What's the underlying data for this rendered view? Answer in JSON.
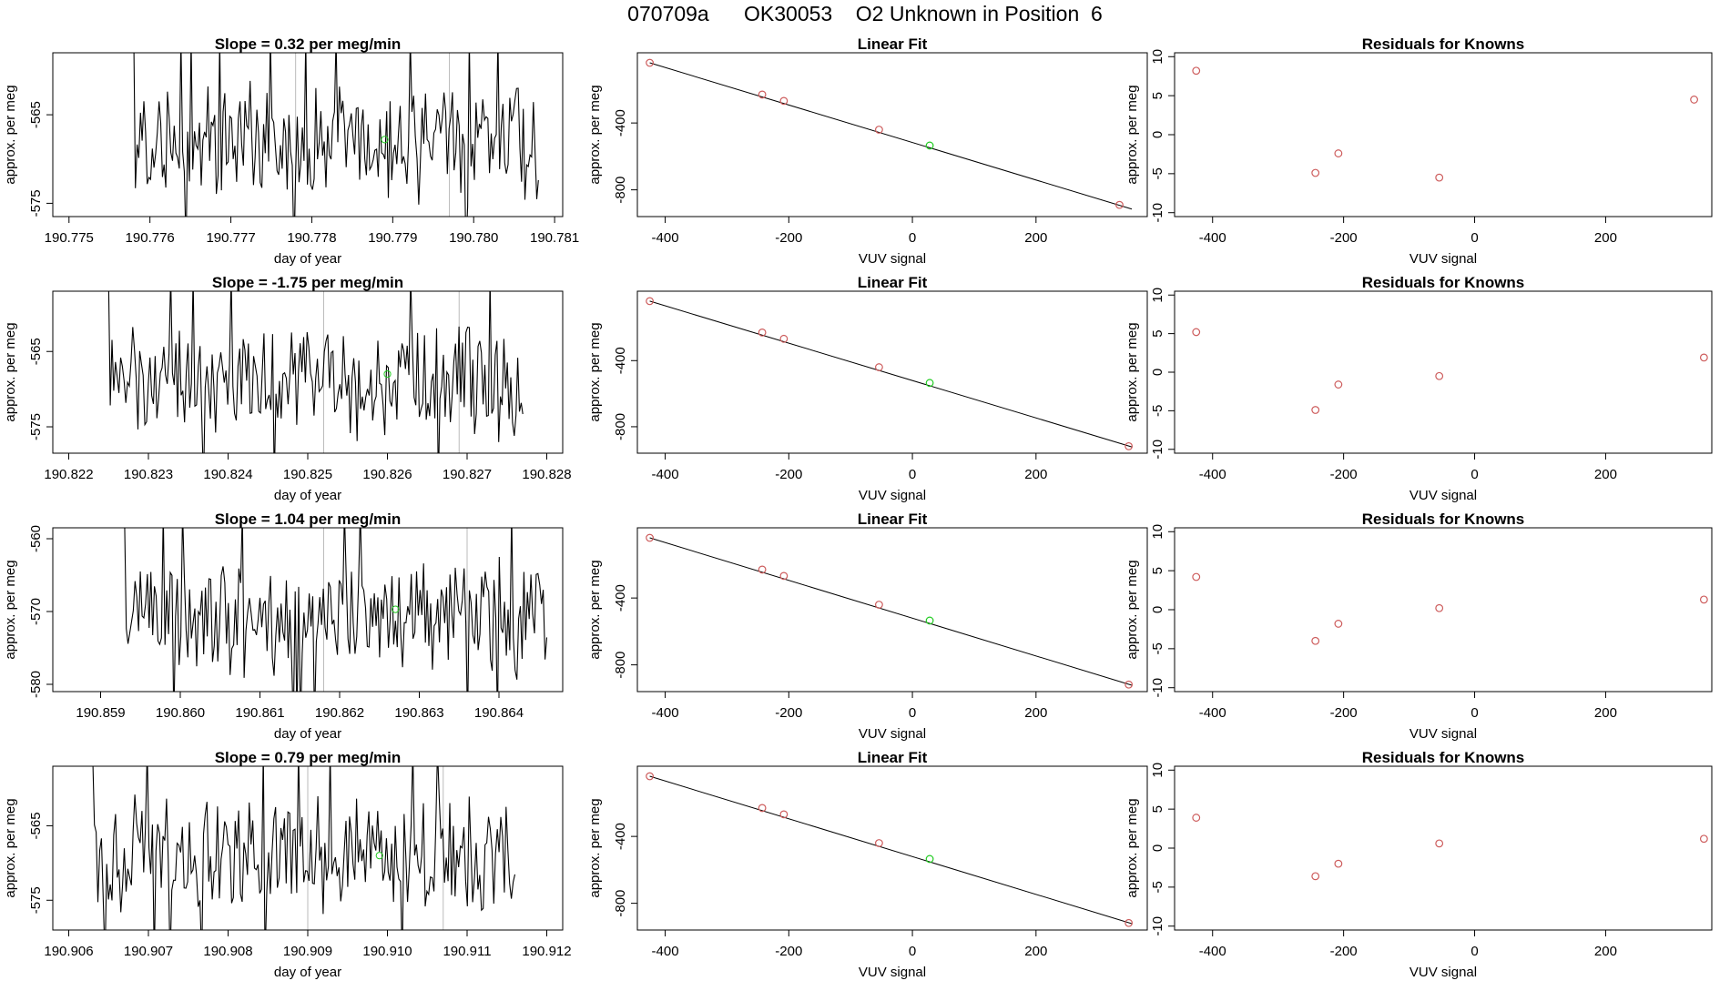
{
  "page_title": "070709a      OK30053    O2 Unknown in Position  6",
  "colors": {
    "line": "#000000",
    "known_point": "#cd5c5c",
    "unknown_point": "#22cc22",
    "marker_line": "#bbbbbb"
  },
  "chart_data": [
    {
      "type": "line",
      "row": 1,
      "title": "Slope =  0.32  per meg/min",
      "xlabel": "day of year",
      "ylabel": "approx. per meg",
      "xlim": [
        190.7748,
        190.7811
      ],
      "ylim": [
        -576.5,
        -558.0
      ],
      "xticks": [
        "190.775",
        "190.776",
        "190.777",
        "190.778",
        "190.779",
        "190.780",
        "190.781"
      ],
      "xtick_values": [
        190.775,
        190.776,
        190.777,
        190.778,
        190.779,
        190.78,
        190.781
      ],
      "yticks": [
        "-565",
        "-575"
      ],
      "ytick_values": [
        -565,
        -575
      ],
      "trace_start": 190.7758,
      "trace_end": 190.7808,
      "vertical_markers": [
        190.7778,
        190.7797
      ],
      "unknown_point": [
        190.7789,
        -567.8
      ]
    },
    {
      "type": "scatter",
      "row": 1,
      "title": "Linear Fit",
      "xlabel": "VUV signal",
      "ylabel": "approx. per meg",
      "xlim": [
        -445,
        380
      ],
      "ylim": [
        -960,
        20
      ],
      "xticks": [
        "-400",
        "-200",
        "0",
        "200"
      ],
      "xtick_values": [
        -400,
        -200,
        0,
        200
      ],
      "yticks": [
        "-400",
        "-800"
      ],
      "ytick_values": [
        -400,
        -800
      ],
      "fit_line": {
        "x": [
          -425,
          355
        ],
        "y": [
          -40,
          -915
        ]
      },
      "knowns": {
        "x": [
          -425,
          -243,
          -208,
          -54,
          335
        ],
        "y": [
          -40,
          -230,
          -268,
          -440,
          -890
        ]
      },
      "unknown": {
        "x": [
          28,
          -535
        ]
      }
    },
    {
      "type": "scatter",
      "row": 1,
      "title": "Residuals for Knowns",
      "xlabel": "VUV signal",
      "ylabel": "approx. per meg",
      "xlim": [
        -458,
        362
      ],
      "ylim": [
        -10.5,
        10.5
      ],
      "xticks": [
        "-400",
        "-200",
        "0",
        "200"
      ],
      "xtick_values": [
        -400,
        -200,
        0,
        200
      ],
      "yticks": [
        "10",
        "5",
        "0",
        "-5",
        "-10"
      ],
      "ytick_values": [
        10,
        5,
        0,
        -5,
        -10
      ],
      "residuals": {
        "x": [
          -425,
          -243,
          -208,
          -54,
          335
        ],
        "y": [
          8.2,
          -4.9,
          -2.4,
          -5.5,
          4.5
        ]
      }
    },
    {
      "type": "line",
      "row": 2,
      "title": "Slope =  -1.75  per meg/min",
      "xlabel": "day of year",
      "ylabel": "approx. per meg",
      "xlim": [
        190.8218,
        190.8282
      ],
      "ylim": [
        -578.5,
        -557.0
      ],
      "xticks": [
        "190.822",
        "190.823",
        "190.824",
        "190.825",
        "190.826",
        "190.827",
        "190.828"
      ],
      "xtick_values": [
        190.822,
        190.823,
        190.824,
        190.825,
        190.826,
        190.827,
        190.828
      ],
      "yticks": [
        "-565",
        "-575"
      ],
      "ytick_values": [
        -565,
        -575
      ],
      "trace_start": 190.8225,
      "trace_end": 190.8277,
      "vertical_markers": [
        190.8252,
        190.8269
      ],
      "unknown_point": [
        190.826,
        -568.0
      ]
    },
    {
      "type": "scatter",
      "row": 2,
      "title": "Linear Fit",
      "xlabel": "VUV signal",
      "ylabel": "approx. per meg",
      "xlim": [
        -445,
        380
      ],
      "ylim": [
        -960,
        20
      ],
      "xticks": [
        "-400",
        "-200",
        "0",
        "200"
      ],
      "xtick_values": [
        -400,
        -200,
        0,
        200
      ],
      "yticks": [
        "-400",
        "-800"
      ],
      "ytick_values": [
        -400,
        -800
      ],
      "fit_line": {
        "x": [
          -425,
          355
        ],
        "y": [
          -40,
          -922
        ]
      },
      "knowns": {
        "x": [
          -425,
          -243,
          -208,
          -54,
          350
        ],
        "y": [
          -40,
          -230,
          -268,
          -440,
          -918
        ]
      },
      "unknown": {
        "x": [
          28,
          -535
        ]
      }
    },
    {
      "type": "scatter",
      "row": 2,
      "title": "Residuals for Knowns",
      "xlabel": "VUV signal",
      "ylabel": "approx. per meg",
      "xlim": [
        -458,
        362
      ],
      "ylim": [
        -10.5,
        10.5
      ],
      "xticks": [
        "-400",
        "-200",
        "0",
        "200"
      ],
      "xtick_values": [
        -400,
        -200,
        0,
        200
      ],
      "yticks": [
        "10",
        "5",
        "0",
        "-5",
        "-10"
      ],
      "ytick_values": [
        10,
        5,
        0,
        -5,
        -10
      ],
      "residuals": {
        "x": [
          -425,
          -243,
          -208,
          -54,
          350
        ],
        "y": [
          5.2,
          -4.9,
          -1.6,
          -0.5,
          1.9
        ]
      }
    },
    {
      "type": "line",
      "row": 3,
      "title": "Slope =  1.04  per meg/min",
      "xlabel": "day of year",
      "ylabel": "approx. per meg",
      "xlim": [
        190.8584,
        190.8648
      ],
      "ylim": [
        -581.0,
        -558.5
      ],
      "xticks": [
        "190.859",
        "190.860",
        "190.861",
        "190.862",
        "190.863",
        "190.864"
      ],
      "xtick_values": [
        190.859,
        190.86,
        190.861,
        190.862,
        190.863,
        190.864
      ],
      "yticks": [
        "-560",
        "-570",
        "-580"
      ],
      "ytick_values": [
        -560,
        -570,
        -580
      ],
      "trace_start": 190.8593,
      "trace_end": 190.8646,
      "vertical_markers": [
        190.8618,
        190.8636
      ],
      "unknown_point": [
        190.8627,
        -569.7
      ]
    },
    {
      "type": "scatter",
      "row": 3,
      "title": "Linear Fit",
      "xlabel": "VUV signal",
      "ylabel": "approx. per meg",
      "xlim": [
        -445,
        380
      ],
      "ylim": [
        -960,
        20
      ],
      "xticks": [
        "-400",
        "-200",
        "0",
        "200"
      ],
      "xtick_values": [
        -400,
        -200,
        0,
        200
      ],
      "yticks": [
        "-400",
        "-800"
      ],
      "ytick_values": [
        -400,
        -800
      ],
      "fit_line": {
        "x": [
          -425,
          355
        ],
        "y": [
          -40,
          -922
        ]
      },
      "knowns": {
        "x": [
          -425,
          -243,
          -208,
          -54,
          350
        ],
        "y": [
          -40,
          -230,
          -268,
          -440,
          -918
        ]
      },
      "unknown": {
        "x": [
          28,
          -535
        ]
      }
    },
    {
      "type": "scatter",
      "row": 3,
      "title": "Residuals for Knowns",
      "xlabel": "VUV signal",
      "ylabel": "approx. per meg",
      "xlim": [
        -458,
        362
      ],
      "ylim": [
        -10.5,
        10.5
      ],
      "xticks": [
        "-400",
        "-200",
        "0",
        "200"
      ],
      "xtick_values": [
        -400,
        -200,
        0,
        200
      ],
      "yticks": [
        "10",
        "5",
        "0",
        "-5",
        "-10"
      ],
      "ytick_values": [
        10,
        5,
        0,
        -5,
        -10
      ],
      "residuals": {
        "x": [
          -425,
          -243,
          -208,
          -54,
          350
        ],
        "y": [
          4.2,
          -4.0,
          -1.8,
          0.2,
          1.3
        ]
      }
    },
    {
      "type": "line",
      "row": 4,
      "title": "Slope =  0.79  per meg/min",
      "xlabel": "day of year",
      "ylabel": "approx. per meg",
      "xlim": [
        190.9058,
        190.9122
      ],
      "ylim": [
        -579.0,
        -557.0
      ],
      "xticks": [
        "190.906",
        "190.907",
        "190.908",
        "190.909",
        "190.910",
        "190.911",
        "190.912"
      ],
      "xtick_values": [
        190.906,
        190.907,
        190.908,
        190.909,
        190.91,
        190.911,
        190.912
      ],
      "yticks": [
        "-565",
        "-575"
      ],
      "ytick_values": [
        -565,
        -575
      ],
      "trace_start": 190.9063,
      "trace_end": 190.9116,
      "vertical_markers": [
        190.909,
        190.9107
      ],
      "unknown_point": [
        190.9099,
        -569.0
      ]
    },
    {
      "type": "scatter",
      "row": 4,
      "title": "Linear Fit",
      "xlabel": "VUV signal",
      "ylabel": "approx. per meg",
      "xlim": [
        -445,
        380
      ],
      "ylim": [
        -960,
        20
      ],
      "xticks": [
        "-400",
        "-200",
        "0",
        "200"
      ],
      "xtick_values": [
        -400,
        -200,
        0,
        200
      ],
      "yticks": [
        "-400",
        "-800"
      ],
      "ytick_values": [
        -400,
        -800
      ],
      "fit_line": {
        "x": [
          -425,
          355
        ],
        "y": [
          -40,
          -922
        ]
      },
      "knowns": {
        "x": [
          -425,
          -243,
          -208,
          -54,
          350
        ],
        "y": [
          -40,
          -230,
          -268,
          -440,
          -918
        ]
      },
      "unknown": {
        "x": [
          28,
          -535
        ]
      }
    },
    {
      "type": "scatter",
      "row": 4,
      "title": "Residuals for Knowns",
      "xlabel": "VUV signal",
      "ylabel": "approx. per meg",
      "xlim": [
        -458,
        362
      ],
      "ylim": [
        -10.5,
        10.5
      ],
      "xticks": [
        "-400",
        "-200",
        "0",
        "200"
      ],
      "xtick_values": [
        -400,
        -200,
        0,
        200
      ],
      "yticks": [
        "10",
        "5",
        "0",
        "-5",
        "-10"
      ],
      "ytick_values": [
        10,
        5,
        0,
        -5,
        -10
      ],
      "residuals": {
        "x": [
          -425,
          -243,
          -208,
          -54,
          350
        ],
        "y": [
          3.9,
          -3.6,
          -2.0,
          0.6,
          1.2
        ]
      }
    }
  ]
}
